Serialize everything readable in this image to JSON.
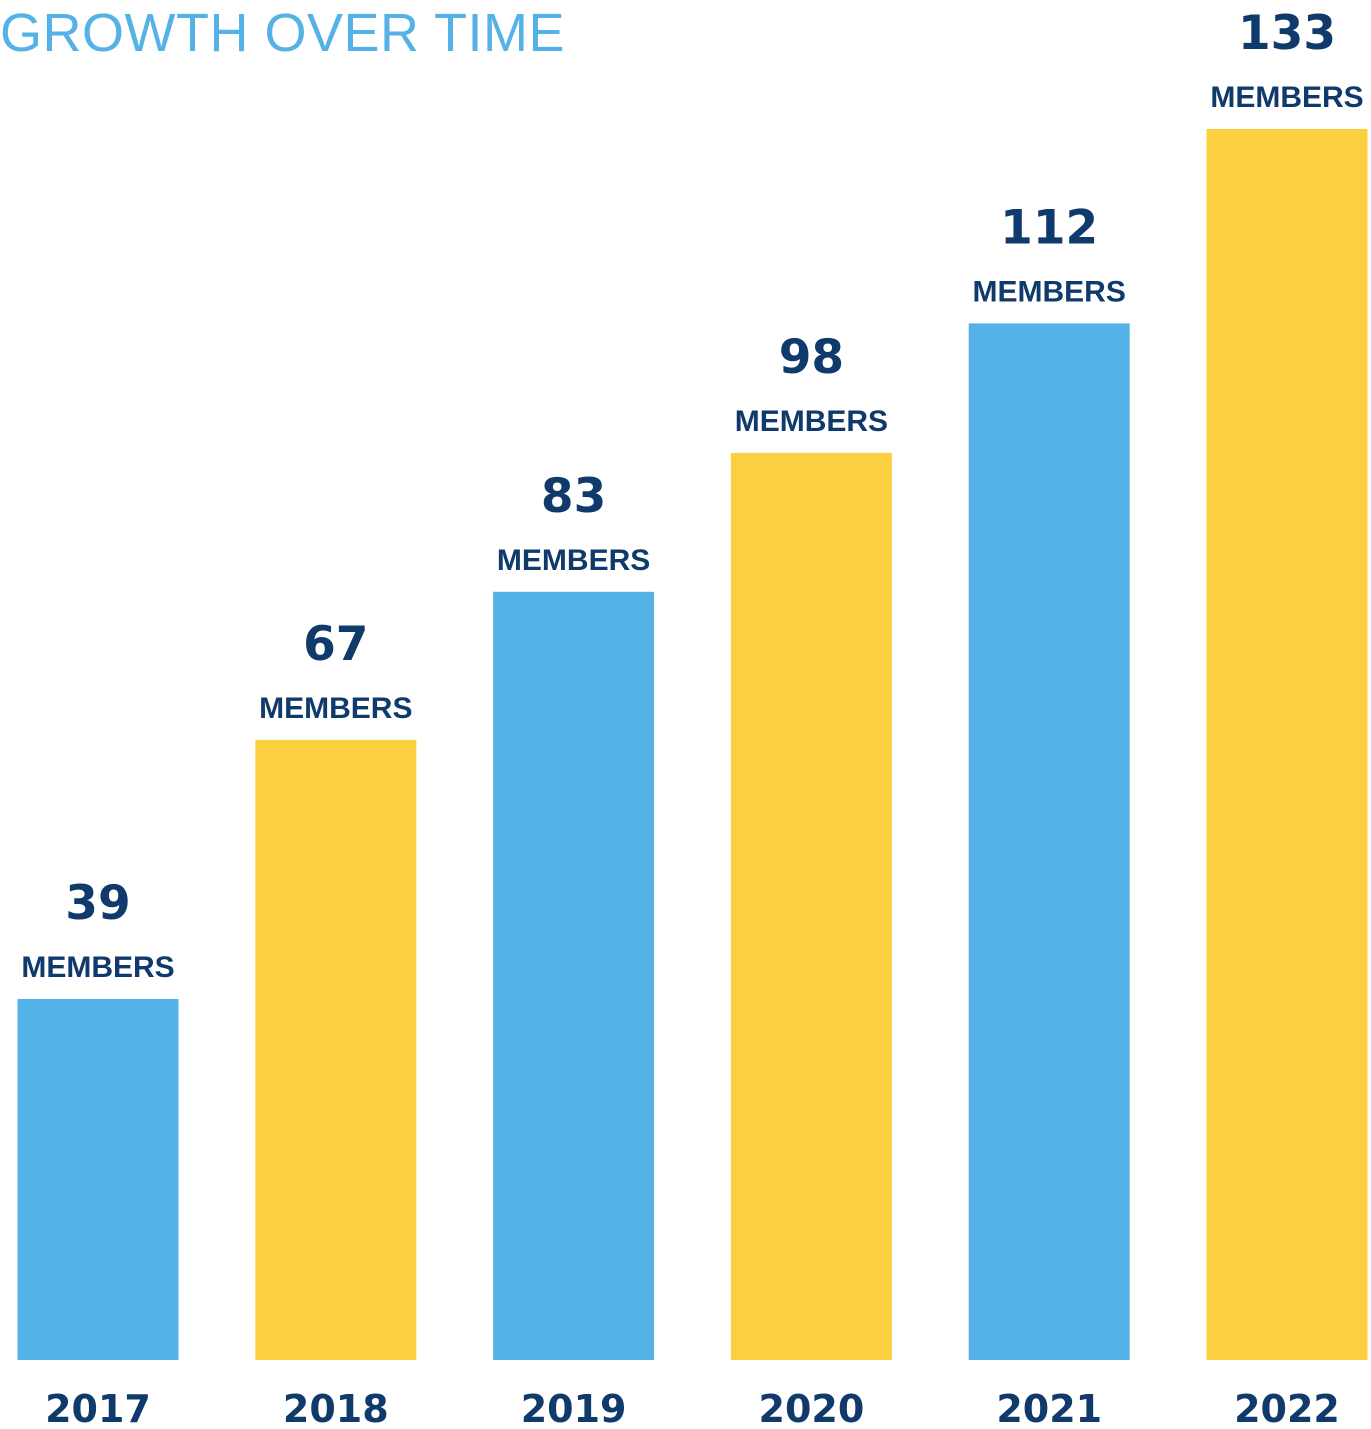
{
  "chart_data": {
    "type": "bar",
    "title": "GROWTH OVER TIME",
    "xlabel": "",
    "ylabel": "",
    "categories": [
      "2017",
      "2018",
      "2019",
      "2020",
      "2021",
      "2022"
    ],
    "values": [
      39,
      67,
      83,
      98,
      112,
      133
    ],
    "value_unit_label": "MEMBERS",
    "ylim": [
      0,
      133
    ],
    "grid": false,
    "legend": "none"
  },
  "colors": {
    "title": "#55b2e6",
    "text": "#0f3a6b",
    "bar_blue": "#55b2e6",
    "bar_yellow": "#fbcf40",
    "background": "#ffffff"
  }
}
